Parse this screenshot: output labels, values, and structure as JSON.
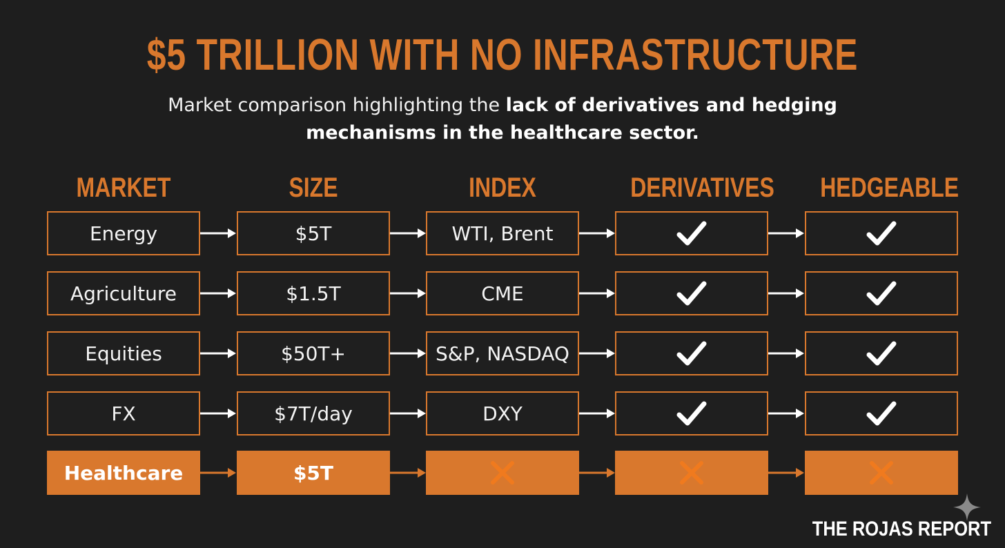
{
  "title": "$5 TRILLION WITH NO INFRASTRUCTURE",
  "subtitle": {
    "prefix": "Market comparison highlighting the ",
    "bold": "lack of derivatives and hedging mechanisms in the healthcare sector."
  },
  "columns": [
    "MARKET",
    "SIZE",
    "INDEX",
    "DERIVATIVES",
    "HEDGEABLE"
  ],
  "rows": [
    {
      "market": "Energy",
      "size": "$5T",
      "index": "WTI, Brent",
      "derivatives": true,
      "hedgeable": true,
      "highlight": false
    },
    {
      "market": "Agriculture",
      "size": "$1.5T",
      "index": "CME",
      "derivatives": true,
      "hedgeable": true,
      "highlight": false
    },
    {
      "market": "Equities",
      "size": "$50T+",
      "index": "S&P, NASDAQ",
      "derivatives": true,
      "hedgeable": true,
      "highlight": false
    },
    {
      "market": "FX",
      "size": "$7T/day",
      "index": "DXY",
      "derivatives": true,
      "hedgeable": true,
      "highlight": false
    },
    {
      "market": "Healthcare",
      "size": "$5T",
      "index": null,
      "derivatives": false,
      "hedgeable": false,
      "highlight": true
    }
  ],
  "brand": "THE ROJAS REPORT",
  "colors": {
    "accent": "#d9782d",
    "background": "#1e1e1e",
    "text": "#f4f4f4",
    "cross": "#f07a1e"
  }
}
